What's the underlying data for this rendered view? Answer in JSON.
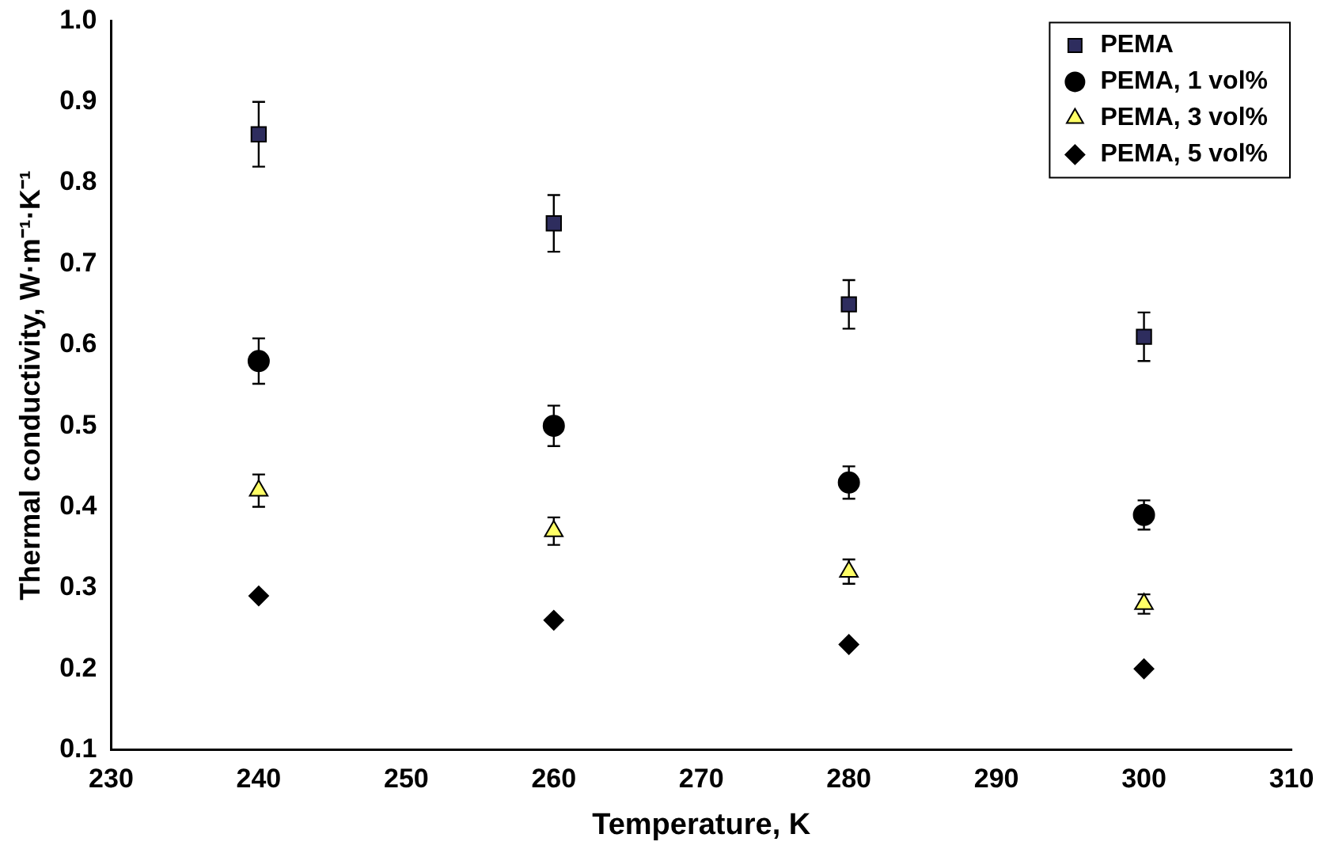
{
  "chart_data": {
    "type": "scatter",
    "xlabel": "Temperature, K",
    "ylabel": "Thermal conductivity, W·m⁻¹·K⁻¹",
    "xlim": [
      230,
      310
    ],
    "xticks": [
      230,
      240,
      250,
      260,
      270,
      280,
      290,
      300,
      310
    ],
    "ylim": [
      0.1,
      1.0
    ],
    "yticks": [
      0.1,
      0.2,
      0.3,
      0.4,
      0.5,
      0.6,
      0.7,
      0.8,
      0.9,
      {
        "value": 1,
        "label": "1.0"
      }
    ],
    "grid": false,
    "legend": "top right",
    "x": [
      240,
      260,
      280,
      300
    ],
    "series": [
      {
        "name": "PEMA",
        "color": "#2e2d5e",
        "marker": "square",
        "values": [
          0.86,
          0.75,
          0.65,
          0.61
        ],
        "errors": [
          0.04,
          0.035,
          0.03,
          0.03
        ]
      },
      {
        "name": "PEMA, 1 vol%",
        "color": "#000000",
        "marker": "circle",
        "values": [
          0.58,
          0.5,
          0.43,
          0.39
        ],
        "errors": [
          0.028,
          0.025,
          0.02,
          0.018
        ]
      },
      {
        "name": "PEMA, 3 vol%",
        "color": "#ffff66",
        "marker": "triangle",
        "values": [
          0.42,
          0.37,
          0.32,
          0.28
        ],
        "errors": [
          0.02,
          0.017,
          0.015,
          0.012
        ]
      },
      {
        "name": "PEMA, 5 vol%",
        "color": "#000000",
        "marker": "diamond",
        "values": [
          0.29,
          0.26,
          0.23,
          0.2
        ]
      }
    ]
  }
}
